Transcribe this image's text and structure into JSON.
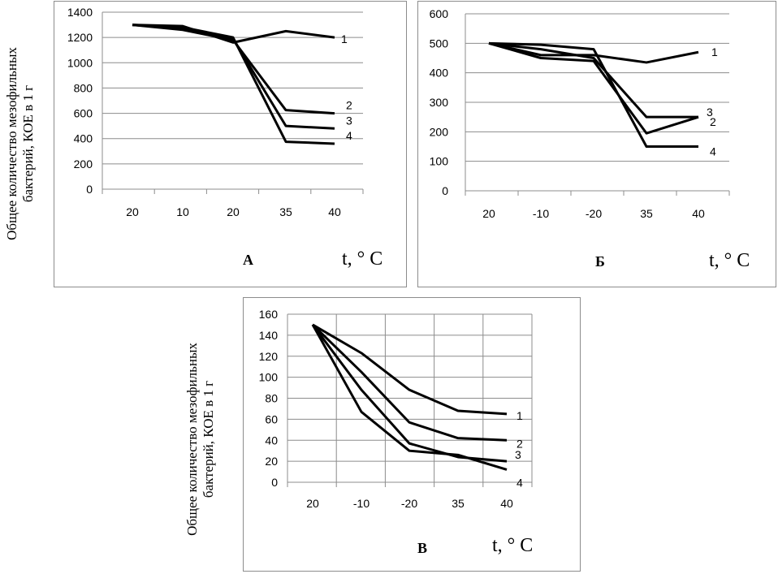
{
  "y_axis_label": {
    "line1": "Общее количество мезофильных",
    "line2": "бактерий, КОЕ в 1 г"
  },
  "chart_data": [
    {
      "type": "line",
      "panel": "А",
      "xlabel": "t, ° C",
      "categories": [
        "20",
        "10",
        "20",
        "35",
        "40"
      ],
      "ylim": [
        0,
        1400
      ],
      "yticks": [
        0,
        200,
        400,
        600,
        800,
        1000,
        1200,
        1400
      ],
      "grid": "horizontal",
      "series": [
        {
          "name": "1",
          "values": [
            1300,
            1290,
            1160,
            1250,
            1200
          ]
        },
        {
          "name": "2",
          "values": [
            1300,
            1260,
            1180,
            625,
            600
          ]
        },
        {
          "name": "3",
          "values": [
            1300,
            1270,
            1190,
            500,
            480
          ]
        },
        {
          "name": "4",
          "values": [
            1300,
            1280,
            1200,
            375,
            360
          ]
        }
      ]
    },
    {
      "type": "line",
      "panel": "Б",
      "xlabel": "t, ° C",
      "categories": [
        "20",
        "-10",
        "-20",
        "35",
        "40"
      ],
      "ylim": [
        0,
        600
      ],
      "yticks": [
        0,
        100,
        200,
        300,
        400,
        500,
        600
      ],
      "grid": "horizontal",
      "series": [
        {
          "name": "1",
          "values": [
            500,
            460,
            460,
            435,
            470
          ]
        },
        {
          "name": "2",
          "values": [
            500,
            450,
            440,
            195,
            250
          ]
        },
        {
          "name": "3",
          "values": [
            500,
            480,
            450,
            250,
            250
          ]
        },
        {
          "name": "4",
          "values": [
            500,
            495,
            480,
            150,
            150
          ]
        }
      ]
    },
    {
      "type": "line",
      "panel": "В",
      "xlabel": "t, ° C",
      "categories": [
        "20",
        "-10",
        "-20",
        "35",
        "40"
      ],
      "ylim": [
        0,
        160
      ],
      "yticks": [
        0,
        20,
        40,
        60,
        80,
        100,
        120,
        140,
        160
      ],
      "grid": "both",
      "series": [
        {
          "name": "1",
          "values": [
            150,
            123,
            88,
            68,
            65
          ]
        },
        {
          "name": "2",
          "values": [
            150,
            105,
            57,
            42,
            40
          ]
        },
        {
          "name": "3",
          "values": [
            150,
            88,
            37,
            24,
            20
          ]
        },
        {
          "name": "4",
          "values": [
            150,
            67,
            30,
            26,
            12
          ]
        }
      ]
    }
  ]
}
